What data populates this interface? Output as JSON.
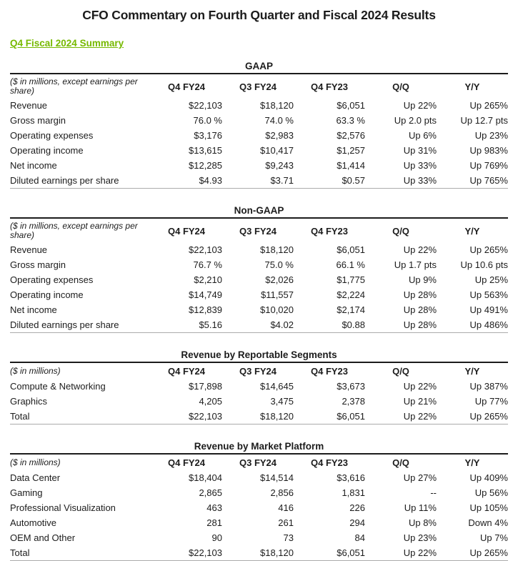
{
  "page": {
    "title": "CFO Commentary on Fourth Quarter and Fiscal 2024 Results",
    "summary_link_label": "Q4 Fiscal 2024 Summary"
  },
  "colors": {
    "link_green": "#76b900",
    "text": "#1c1c1c",
    "table_top_rule": "#1c1c1c",
    "table_bottom_rule": "#ababab"
  },
  "tables": [
    {
      "title": "GAAP",
      "note": "($ in millions, except earnings per share)",
      "columns": [
        "Q4 FY24",
        "Q3 FY24",
        "Q4 FY23",
        "Q/Q",
        "Y/Y"
      ],
      "rows": [
        {
          "label": "Revenue",
          "values": [
            "$22,103",
            "$18,120",
            "$6,051",
            "Up 22%",
            "Up 265%"
          ]
        },
        {
          "label": "Gross margin",
          "values": [
            "76.0 %",
            "74.0 %",
            "63.3 %",
            "Up 2.0 pts",
            "Up 12.7 pts"
          ]
        },
        {
          "label": "Operating expenses",
          "values": [
            "$3,176",
            "$2,983",
            "$2,576",
            "Up 6%",
            "Up 23%"
          ]
        },
        {
          "label": "Operating income",
          "values": [
            "$13,615",
            "$10,417",
            "$1,257",
            "Up 31%",
            "Up 983%"
          ]
        },
        {
          "label": "Net income",
          "values": [
            "$12,285",
            "$9,243",
            "$1,414",
            "Up 33%",
            "Up 769%"
          ]
        },
        {
          "label": "Diluted earnings per share",
          "values": [
            "$4.93",
            "$3.71",
            "$0.57",
            "Up 33%",
            "Up 765%"
          ]
        }
      ]
    },
    {
      "title": "Non-GAAP",
      "note": "($ in millions, except earnings per share)",
      "columns": [
        "Q4 FY24",
        "Q3 FY24",
        "Q4 FY23",
        "Q/Q",
        "Y/Y"
      ],
      "rows": [
        {
          "label": "Revenue",
          "values": [
            "$22,103",
            "$18,120",
            "$6,051",
            "Up 22%",
            "Up 265%"
          ]
        },
        {
          "label": "Gross margin",
          "values": [
            "76.7 %",
            "75.0 %",
            "66.1 %",
            "Up 1.7 pts",
            "Up 10.6 pts"
          ]
        },
        {
          "label": "Operating expenses",
          "values": [
            "$2,210",
            "$2,026",
            "$1,775",
            "Up 9%",
            "Up 25%"
          ]
        },
        {
          "label": "Operating income",
          "values": [
            "$14,749",
            "$11,557",
            "$2,224",
            "Up 28%",
            "Up 563%"
          ]
        },
        {
          "label": "Net income",
          "values": [
            "$12,839",
            "$10,020",
            "$2,174",
            "Up 28%",
            "Up 491%"
          ]
        },
        {
          "label": "Diluted earnings per share",
          "values": [
            "$5.16",
            "$4.02",
            "$0.88",
            "Up 28%",
            "Up 486%"
          ]
        }
      ]
    },
    {
      "title": "Revenue by Reportable Segments",
      "note": "($ in millions)",
      "columns": [
        "Q4 FY24",
        "Q3 FY24",
        "Q4 FY23",
        "Q/Q",
        "Y/Y"
      ],
      "rows": [
        {
          "label": "Compute & Networking",
          "values": [
            "$17,898",
            "$14,645",
            "$3,673",
            "Up 22%",
            "Up 387%"
          ]
        },
        {
          "label": "Graphics",
          "values": [
            "4,205",
            "3,475",
            "2,378",
            "Up 21%",
            "Up 77%"
          ]
        },
        {
          "label": "Total",
          "values": [
            "$22,103",
            "$18,120",
            "$6,051",
            "Up 22%",
            "Up 265%"
          ]
        }
      ]
    },
    {
      "title": "Revenue by Market Platform",
      "note": "($ in millions)",
      "columns": [
        "Q4 FY24",
        "Q3 FY24",
        "Q4 FY23",
        "Q/Q",
        "Y/Y"
      ],
      "rows": [
        {
          "label": "Data Center",
          "values": [
            "$18,404",
            "$14,514",
            "$3,616",
            "Up 27%",
            "Up 409%"
          ]
        },
        {
          "label": "Gaming",
          "values": [
            "2,865",
            "2,856",
            "1,831",
            "--",
            "Up 56%"
          ]
        },
        {
          "label": "Professional Visualization",
          "values": [
            "463",
            "416",
            "226",
            "Up 11%",
            "Up 105%"
          ]
        },
        {
          "label": "Automotive",
          "values": [
            "281",
            "261",
            "294",
            "Up 8%",
            "Down 4%"
          ]
        },
        {
          "label": "OEM and Other",
          "values": [
            "90",
            "73",
            "84",
            "Up 23%",
            "Up 7%"
          ]
        },
        {
          "label": "Total",
          "values": [
            "$22,103",
            "$18,120",
            "$6,051",
            "Up 22%",
            "Up 265%"
          ]
        }
      ]
    }
  ]
}
